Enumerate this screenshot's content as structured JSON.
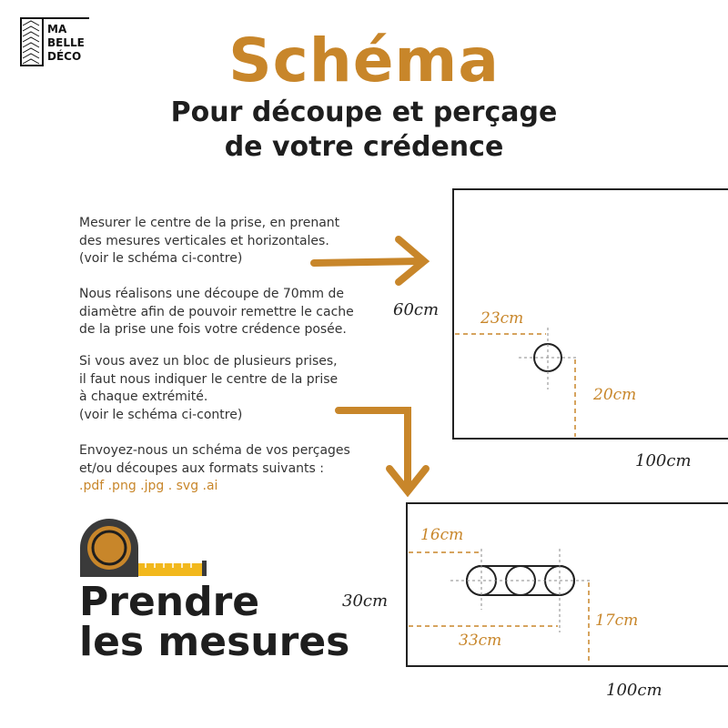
{
  "logo": {
    "lines": [
      "MA",
      "BELLE",
      "DÉCO"
    ]
  },
  "header": {
    "title": "Schéma",
    "subtitle_lines": [
      "Pour découpe et perçage",
      "de votre crédence"
    ]
  },
  "instructions": {
    "p1": [
      "Mesurer le centre de la prise, en prenant",
      "des mesures verticales et horizontales.",
      "(voir le schéma ci-contre)"
    ],
    "p2": [
      "Nous réalisons une découpe de 70mm de",
      "diamètre afin de pouvoir remettre le cache",
      "de la prise une fois votre crédence posée."
    ],
    "p3": [
      "Si vous avez un bloc de plusieurs prises,",
      "il faut nous indiquer le centre de la prise",
      "à chaque extrémité.",
      "(voir le schéma ci-contre)"
    ],
    "p4": [
      "Envoyez-nous un schéma de vos perçages",
      "et/ou découpes aux formats suivants :"
    ],
    "formats": ".pdf .png .jpg . svg .ai"
  },
  "footer": {
    "title_lines": [
      "Prendre",
      "les mesures"
    ],
    "icon": "tape-measure-icon"
  },
  "diagram_single": {
    "height": "60cm",
    "width": "100cm",
    "horizontal": "23cm",
    "vertical": "20cm"
  },
  "diagram_block": {
    "height": "30cm",
    "width": "100cm",
    "horizontal_first": "16cm",
    "horizontal_last": "33cm",
    "vertical": "17cm"
  },
  "colors": {
    "accent": "#c8862a",
    "text": "#1e1e1e",
    "tape_dark": "#3a3a3a",
    "tape_yellow": "#f2b81c"
  }
}
